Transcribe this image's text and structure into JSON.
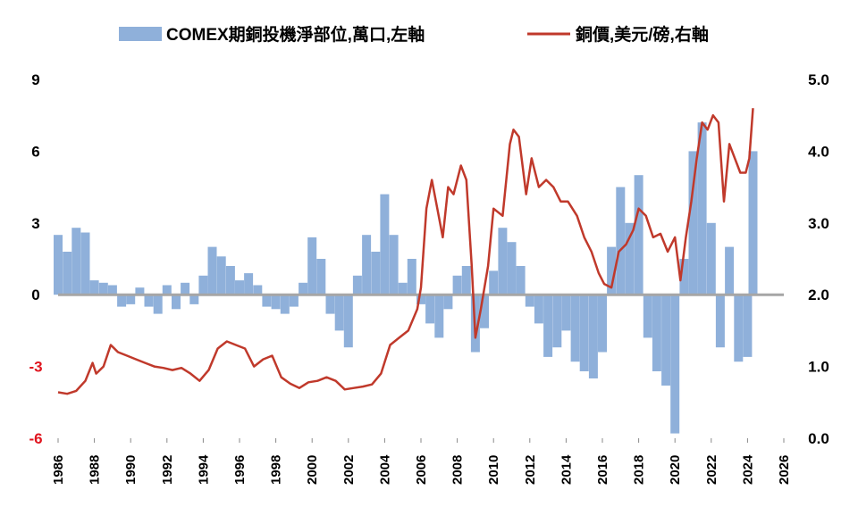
{
  "colors": {
    "bar": "#8FB0DA",
    "line": "#C0392B",
    "zero_line": "#A6A6A6",
    "negative_tick": "#E0141E",
    "text": "#000000"
  },
  "chart_data": {
    "type": "bar+line",
    "legend": {
      "placement": "top",
      "items": [
        {
          "kind": "bar",
          "label": "COMEX期銅投機淨部位,萬口,左軸"
        },
        {
          "kind": "line",
          "label": "銅價,美元/磅,右軸"
        }
      ]
    },
    "x_axis": {
      "range": [
        1986,
        2026
      ],
      "ticks": [
        "1986",
        "1988",
        "1990",
        "1992",
        "1994",
        "1996",
        "1998",
        "2000",
        "2002",
        "2004",
        "2006",
        "2008",
        "2010",
        "2012",
        "2014",
        "2016",
        "2018",
        "2020",
        "2022",
        "2024",
        "2026"
      ]
    },
    "y_left": {
      "range": [
        -6,
        9
      ],
      "ticks": [
        {
          "value": 9,
          "label": "9"
        },
        {
          "value": 6,
          "label": "6"
        },
        {
          "value": 3,
          "label": "3"
        },
        {
          "value": 0,
          "label": "0"
        },
        {
          "value": -3,
          "label": "-3"
        },
        {
          "value": -6,
          "label": "-6"
        }
      ]
    },
    "y_right": {
      "range": [
        0.0,
        5.0
      ],
      "ticks": [
        {
          "value": 5.0,
          "label": "5.0"
        },
        {
          "value": 4.0,
          "label": "4.0"
        },
        {
          "value": 3.0,
          "label": "3.0"
        },
        {
          "value": 2.0,
          "label": "2.0"
        },
        {
          "value": 1.0,
          "label": "1.0"
        },
        {
          "value": 0.0,
          "label": "0.0"
        }
      ]
    },
    "series": [
      {
        "name": "COMEX期銅投機淨部位,萬口,左軸",
        "type": "bar",
        "axis": "left",
        "x": [
          1986.0,
          1986.5,
          1987.0,
          1987.5,
          1988.0,
          1988.5,
          1989.0,
          1989.5,
          1990.0,
          1990.5,
          1991.0,
          1991.5,
          1992.0,
          1992.5,
          1993.0,
          1993.5,
          1994.0,
          1994.5,
          1995.0,
          1995.5,
          1996.0,
          1996.5,
          1997.0,
          1997.5,
          1998.0,
          1998.5,
          1999.0,
          1999.5,
          2000.0,
          2000.5,
          2001.0,
          2001.5,
          2002.0,
          2002.5,
          2003.0,
          2003.5,
          2004.0,
          2004.5,
          2005.0,
          2005.5,
          2006.0,
          2006.5,
          2007.0,
          2007.5,
          2008.0,
          2008.5,
          2009.0,
          2009.5,
          2010.0,
          2010.5,
          2011.0,
          2011.5,
          2012.0,
          2012.5,
          2013.0,
          2013.5,
          2014.0,
          2014.5,
          2015.0,
          2015.5,
          2016.0,
          2016.5,
          2017.0,
          2017.5,
          2018.0,
          2018.5,
          2019.0,
          2019.5,
          2020.0,
          2020.5,
          2021.0,
          2021.5,
          2022.0,
          2022.5,
          2023.0,
          2023.5,
          2024.0,
          2024.3
        ],
        "values": [
          2.5,
          1.8,
          2.8,
          2.6,
          0.6,
          0.5,
          0.4,
          -0.5,
          -0.4,
          0.3,
          -0.5,
          -0.8,
          0.4,
          -0.6,
          0.5,
          -0.4,
          0.8,
          2.0,
          1.6,
          1.2,
          0.6,
          0.9,
          0.4,
          -0.5,
          -0.6,
          -0.8,
          -0.5,
          0.5,
          2.4,
          1.5,
          -0.8,
          -1.5,
          -2.2,
          0.8,
          2.5,
          1.8,
          4.2,
          2.5,
          0.5,
          1.5,
          -0.4,
          -1.2,
          -1.8,
          -0.6,
          0.8,
          1.2,
          -2.4,
          -1.4,
          1.0,
          2.8,
          2.2,
          1.2,
          -0.5,
          -1.2,
          -2.6,
          -2.2,
          -1.5,
          -2.8,
          -3.2,
          -3.5,
          -2.4,
          2.0,
          4.5,
          3.0,
          5.0,
          -1.8,
          -3.2,
          -3.8,
          -5.8,
          1.5,
          6.0,
          7.2,
          3.0,
          -2.2,
          2.0,
          -2.8,
          -2.6,
          6.0
        ]
      },
      {
        "name": "銅價,美元/磅,右軸",
        "type": "line",
        "axis": "right",
        "x": [
          1986.0,
          1986.5,
          1987.0,
          1987.5,
          1987.9,
          1988.1,
          1988.5,
          1988.9,
          1989.3,
          1989.8,
          1990.3,
          1990.8,
          1991.3,
          1991.8,
          1992.3,
          1992.8,
          1993.3,
          1993.8,
          1994.3,
          1994.8,
          1995.3,
          1995.8,
          1996.3,
          1996.8,
          1997.3,
          1997.8,
          1998.3,
          1998.8,
          1999.3,
          1999.8,
          2000.3,
          2000.8,
          2001.3,
          2001.8,
          2002.3,
          2002.8,
          2003.3,
          2003.8,
          2004.3,
          2004.8,
          2005.3,
          2005.8,
          2006.0,
          2006.3,
          2006.6,
          2006.9,
          2007.2,
          2007.5,
          2007.8,
          2008.2,
          2008.5,
          2008.8,
          2009.0,
          2009.3,
          2009.7,
          2010.0,
          2010.5,
          2010.9,
          2011.1,
          2011.4,
          2011.8,
          2012.1,
          2012.5,
          2012.9,
          2013.3,
          2013.7,
          2014.1,
          2014.6,
          2015.0,
          2015.4,
          2015.8,
          2016.1,
          2016.5,
          2016.9,
          2017.3,
          2017.7,
          2018.0,
          2018.4,
          2018.8,
          2019.2,
          2019.6,
          2020.0,
          2020.3,
          2020.6,
          2020.9,
          2021.2,
          2021.5,
          2021.8,
          2022.1,
          2022.4,
          2022.7,
          2023.0,
          2023.3,
          2023.6,
          2023.9,
          2024.1,
          2024.3
        ],
        "values": [
          0.64,
          0.62,
          0.66,
          0.8,
          1.05,
          0.9,
          1.0,
          1.3,
          1.2,
          1.15,
          1.1,
          1.05,
          1.0,
          0.98,
          0.95,
          0.98,
          0.9,
          0.8,
          0.95,
          1.25,
          1.35,
          1.3,
          1.25,
          1.0,
          1.1,
          1.15,
          0.85,
          0.76,
          0.7,
          0.78,
          0.8,
          0.85,
          0.8,
          0.68,
          0.7,
          0.72,
          0.75,
          0.9,
          1.3,
          1.4,
          1.5,
          1.8,
          2.1,
          3.2,
          3.6,
          3.2,
          2.8,
          3.5,
          3.4,
          3.8,
          3.6,
          2.4,
          1.4,
          1.8,
          2.4,
          3.2,
          3.1,
          4.1,
          4.3,
          4.2,
          3.4,
          3.9,
          3.5,
          3.6,
          3.5,
          3.3,
          3.3,
          3.1,
          2.8,
          2.6,
          2.3,
          2.15,
          2.1,
          2.6,
          2.7,
          2.9,
          3.2,
          3.1,
          2.8,
          2.85,
          2.6,
          2.8,
          2.2,
          2.8,
          3.3,
          3.9,
          4.4,
          4.3,
          4.5,
          4.4,
          3.3,
          4.1,
          3.9,
          3.7,
          3.7,
          3.9,
          4.6
        ]
      }
    ]
  }
}
